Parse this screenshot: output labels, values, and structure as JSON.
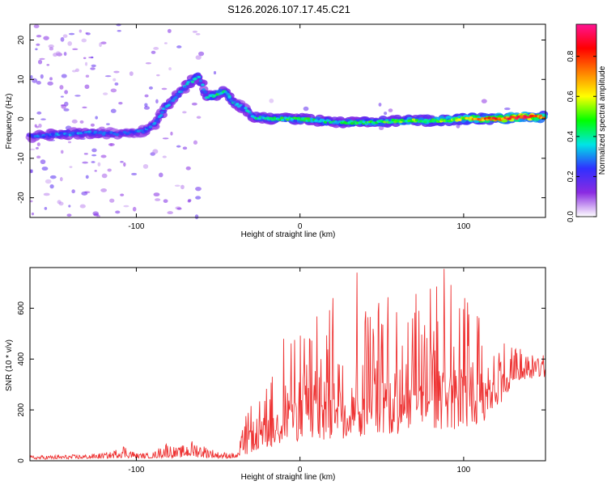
{
  "title": "S126.2026.107.17.45.C21",
  "chart_data": [
    {
      "type": "heatmap",
      "xlabel": "Height of straight line (km)",
      "ylabel": "Frequency (Hz)",
      "xlim": [
        -165,
        150
      ],
      "ylim": [
        -25,
        24
      ],
      "xticks": [
        -100,
        0,
        100
      ],
      "xtick_labels": [
        "-100",
        "0",
        "100"
      ],
      "yticks": [
        -20,
        -10,
        0,
        10,
        20
      ],
      "ytick_labels": [
        "-20",
        "-10",
        "0",
        "10",
        "20"
      ],
      "ridge_x": [
        -165,
        -150,
        -130,
        -110,
        -95,
        -88,
        -82,
        -75,
        -68,
        -62,
        -57,
        -52,
        -46,
        -40,
        -35,
        -28,
        -20,
        -10,
        0,
        20,
        40,
        60,
        80,
        100,
        120,
        140,
        150
      ],
      "ridge_freq": [
        -4.5,
        -4,
        -3.5,
        -3.8,
        -3,
        -1,
        3,
        6,
        9,
        11,
        5.5,
        6,
        7,
        4,
        3,
        0.5,
        0,
        0,
        0,
        -0.8,
        -1,
        -0.5,
        -0.5,
        0,
        0,
        0.5,
        0.5
      ],
      "ridge_amp": [
        0.25,
        0.3,
        0.3,
        0.25,
        0.3,
        0.3,
        0.35,
        0.3,
        0.35,
        0.35,
        0.35,
        0.45,
        0.4,
        0.35,
        0.3,
        0.4,
        0.4,
        0.45,
        0.45,
        0.4,
        0.45,
        0.5,
        0.5,
        0.6,
        0.8,
        0.95,
        0.7
      ],
      "colorbar": {
        "label": "Normalized spectral amplitude",
        "range": [
          0,
          0.96
        ],
        "ticks": [
          0.0,
          0.2,
          0.4,
          0.6,
          0.8
        ],
        "tick_labels": [
          "0.0",
          "0.2",
          "0.4",
          "0.6",
          "0.8"
        ],
        "colors": [
          "#ffffff",
          "#8a2be2",
          "#3030ff",
          "#00e5e5",
          "#00ff00",
          "#ffff00",
          "#ff8000",
          "#ff0000",
          "#ff1493"
        ]
      }
    },
    {
      "type": "line",
      "xlabel": "Height of straight line (km)",
      "ylabel": "SNR (10 * v/v)",
      "xlim": [
        -165,
        150
      ],
      "ylim": [
        0,
        760
      ],
      "xticks": [
        -100,
        0,
        100
      ],
      "xtick_labels": [
        "-100",
        "0",
        "100"
      ],
      "yticks": [
        0,
        200,
        400,
        600
      ],
      "ytick_labels": [
        "0",
        "200",
        "400",
        "600"
      ],
      "color": "#ee3333",
      "envelope_x": [
        -165,
        -130,
        -115,
        -108,
        -100,
        -90,
        -82,
        -75,
        -66,
        -58,
        -50,
        -38,
        -33,
        -28,
        -22,
        -10,
        0,
        15,
        30,
        45,
        60,
        75,
        90,
        100,
        110,
        120,
        130,
        140,
        150
      ],
      "envelope_hi": [
        20,
        25,
        35,
        65,
        30,
        30,
        75,
        50,
        80,
        60,
        35,
        30,
        200,
        160,
        300,
        420,
        520,
        600,
        620,
        640,
        660,
        700,
        720,
        650,
        600,
        500,
        470,
        440,
        420
      ],
      "envelope_lo": [
        5,
        8,
        10,
        12,
        10,
        10,
        12,
        12,
        15,
        12,
        10,
        10,
        20,
        40,
        50,
        60,
        80,
        80,
        90,
        100,
        100,
        120,
        120,
        120,
        140,
        200,
        300,
        320,
        330
      ],
      "peaks": [
        {
          "x": 35,
          "y": 740
        },
        {
          "x": 88,
          "y": 755
        },
        {
          "x": 20,
          "y": 640
        },
        {
          "x": -10,
          "y": 480
        },
        {
          "x": -30,
          "y": 215
        }
      ]
    }
  ]
}
